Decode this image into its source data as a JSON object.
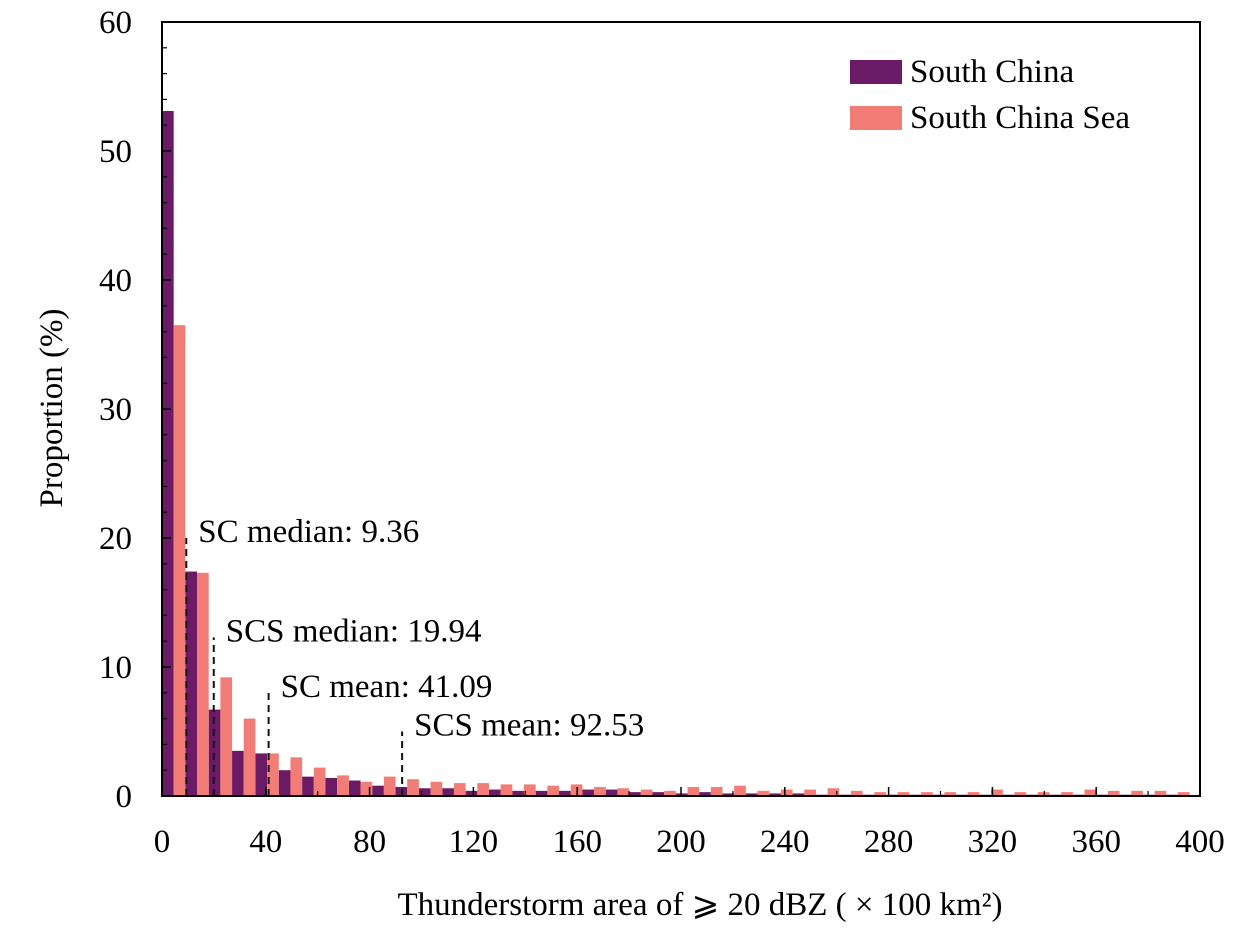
{
  "chart_data": {
    "type": "bar",
    "title": "",
    "xlabel": "Thunderstorm area of ⩾ 20 dBZ ( × 100 km²)",
    "ylabel": "Proportion (%)",
    "xlim": [
      0,
      400
    ],
    "ylim": [
      0,
      60
    ],
    "xticks": [
      "0",
      "40",
      "80",
      "120",
      "160",
      "200",
      "240",
      "280",
      "320",
      "360",
      "400"
    ],
    "yticks": [
      "0",
      "10",
      "20",
      "30",
      "40",
      "50",
      "60"
    ],
    "bin_width": 9,
    "bin_starts": [
      0,
      9,
      18,
      27,
      36,
      45,
      54,
      63,
      72,
      81,
      90,
      99,
      108,
      117,
      126,
      135,
      144,
      153,
      162,
      171,
      180,
      189,
      198,
      207,
      216,
      225,
      234,
      243,
      252,
      261,
      270,
      279,
      288,
      297,
      306,
      315,
      324,
      333,
      342,
      351,
      360,
      369,
      378,
      387
    ],
    "grid": false,
    "legend_position": "top-right",
    "series": [
      {
        "name": "South China",
        "color": "#6b1a66",
        "values": [
          53.1,
          17.4,
          6.7,
          3.5,
          3.3,
          2.0,
          1.5,
          1.4,
          1.2,
          0.8,
          0.7,
          0.6,
          0.6,
          0.4,
          0.5,
          0.4,
          0.4,
          0.4,
          0.5,
          0.5,
          0.3,
          0.3,
          0.2,
          0.3,
          0.2,
          0.2,
          0.2,
          0.2,
          0.1,
          0.1,
          0.1,
          0.1,
          0.1,
          0.1,
          0.1,
          0.1,
          0.1,
          0.1,
          0.1,
          0.1,
          0.1,
          0.1,
          0.1,
          0.1
        ]
      },
      {
        "name": "South China Sea",
        "color": "#f27d76",
        "values": [
          36.5,
          17.3,
          9.2,
          6.0,
          3.3,
          3.0,
          2.2,
          1.6,
          1.1,
          1.5,
          1.3,
          1.1,
          1.0,
          1.0,
          0.9,
          0.9,
          0.8,
          0.9,
          0.7,
          0.6,
          0.5,
          0.4,
          0.7,
          0.7,
          0.8,
          0.4,
          0.5,
          0.5,
          0.6,
          0.4,
          0.3,
          0.3,
          0.3,
          0.3,
          0.3,
          0.5,
          0.3,
          0.3,
          0.3,
          0.5,
          0.4,
          0.4,
          0.4,
          0.3
        ]
      }
    ],
    "annotations": [
      {
        "text": "SC median: 9.36",
        "x": 9.36,
        "line_top": 20
      },
      {
        "text": "SCS median: 19.94",
        "x": 19.94,
        "line_top": 12.3
      },
      {
        "text": "SC mean: 41.09",
        "x": 41.09,
        "line_top": 8
      },
      {
        "text": "SCS mean: 92.53",
        "x": 92.53,
        "line_top": 5
      }
    ]
  }
}
